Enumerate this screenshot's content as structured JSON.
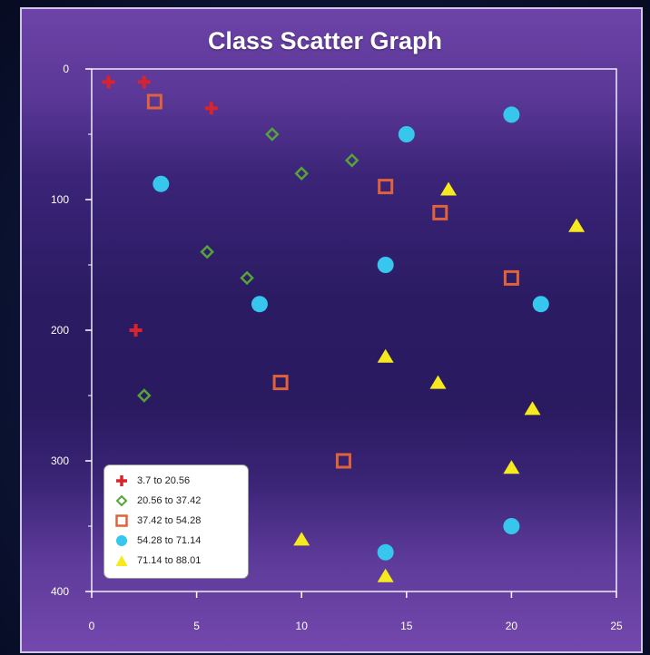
{
  "chart_data": {
    "type": "scatter",
    "title": "Class Scatter Graph",
    "xlabel": "",
    "ylabel": "",
    "xlim": [
      0,
      25
    ],
    "ylim": [
      0,
      400
    ],
    "y_inverted": true,
    "x_ticks": [
      "0",
      "5",
      "10",
      "15",
      "20",
      "25"
    ],
    "y_ticks": [
      "0",
      "100",
      "200",
      "300",
      "400"
    ],
    "legend_position": "bottom-left",
    "series": [
      {
        "name": "3.7 to 20.56",
        "marker": "plus",
        "color": "#d8242c",
        "points": [
          [
            0.8,
            10
          ],
          [
            2.5,
            10
          ],
          [
            5.7,
            30
          ],
          [
            2.1,
            200
          ]
        ]
      },
      {
        "name": "20.56 to 37.42",
        "marker": "diamond-open",
        "color": "#55a43a",
        "points": [
          [
            8.6,
            50
          ],
          [
            10,
            80
          ],
          [
            12.4,
            70
          ],
          [
            5.5,
            140
          ],
          [
            7.4,
            160
          ],
          [
            2.5,
            250
          ]
        ]
      },
      {
        "name": "37.42 to 54.28",
        "marker": "square-open",
        "color": "#e0623a",
        "points": [
          [
            3,
            25
          ],
          [
            14,
            90
          ],
          [
            16.6,
            110
          ],
          [
            20,
            160
          ],
          [
            9,
            240
          ],
          [
            12,
            300
          ]
        ]
      },
      {
        "name": "54.28 to 71.14",
        "marker": "circle",
        "color": "#36c6ee",
        "points": [
          [
            20,
            35
          ],
          [
            15,
            50
          ],
          [
            3.3,
            88
          ],
          [
            14,
            150
          ],
          [
            8,
            180
          ],
          [
            21.4,
            180
          ],
          [
            20,
            350
          ],
          [
            14,
            370
          ]
        ]
      },
      {
        "name": "71.14 to 88.01",
        "marker": "triangle",
        "color": "#f6ea1e",
        "points": [
          [
            17,
            92
          ],
          [
            23.1,
            120
          ],
          [
            14,
            220
          ],
          [
            16.5,
            240
          ],
          [
            21,
            260
          ],
          [
            20,
            305
          ],
          [
            10,
            360
          ],
          [
            14,
            388
          ]
        ]
      }
    ]
  }
}
